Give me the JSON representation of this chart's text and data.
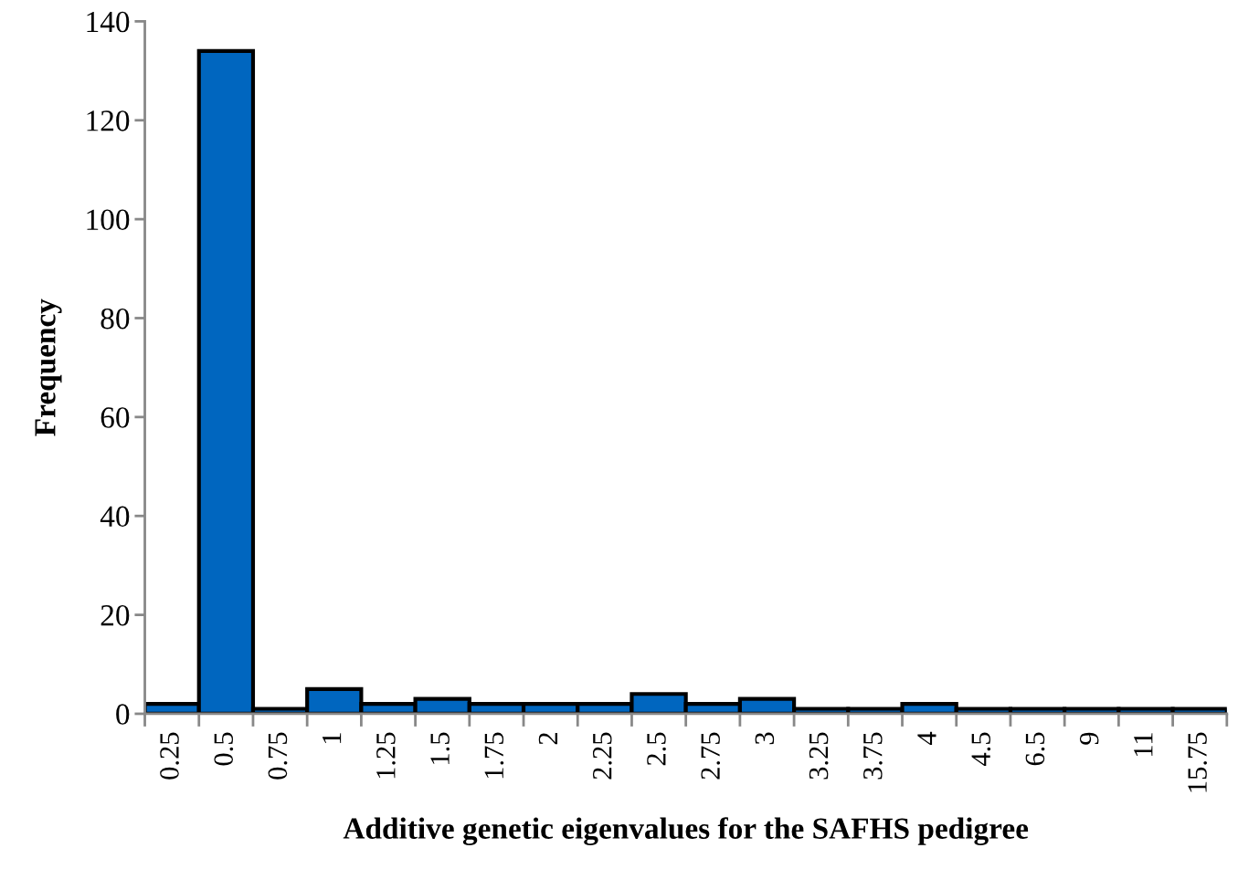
{
  "chart_data": {
    "type": "bar",
    "xlabel": "Additive genetic eigenvalues for the SAFHS pedigree",
    "ylabel": "Frequency",
    "categories": [
      "0.25",
      "0.5",
      "0.75",
      "1",
      "1.25",
      "1.5",
      "1.75",
      "2",
      "2.25",
      "2.5",
      "2.75",
      "3",
      "3.25",
      "3.75",
      "4",
      "4.5",
      "6.5",
      "9",
      "11",
      "15.75"
    ],
    "values": [
      2,
      134,
      1,
      5,
      2,
      3,
      2,
      2,
      2,
      4,
      2,
      3,
      1,
      1,
      2,
      1,
      1,
      1,
      1,
      1
    ],
    "color": "#0066bf",
    "ylim": [
      0,
      140
    ],
    "yticks": [
      0,
      20,
      40,
      60,
      80,
      100,
      120,
      140
    ],
    "grid": false
  }
}
